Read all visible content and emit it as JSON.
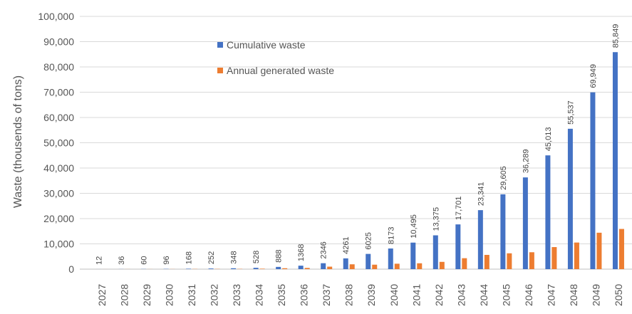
{
  "chart_data": {
    "type": "bar",
    "title": "",
    "xlabel": "",
    "ylabel": "Waste (thousends of tons)",
    "ylim": [
      0,
      100000
    ],
    "yticks": [
      0,
      10000,
      20000,
      30000,
      40000,
      50000,
      60000,
      70000,
      80000,
      90000,
      100000
    ],
    "ytick_labels": [
      "0",
      "10,000",
      "20,000",
      "30,000",
      "40,000",
      "50,000",
      "60,000",
      "70,000",
      "80,000",
      "90,000",
      "100,000"
    ],
    "grid": true,
    "legend_position": "top-center",
    "categories": [
      "2027",
      "2028",
      "2029",
      "2030",
      "2031",
      "2032",
      "2033",
      "2034",
      "2035",
      "2036",
      "2037",
      "2038",
      "2039",
      "2040",
      "2041",
      "2042",
      "2043",
      "2044",
      "2045",
      "2046",
      "2047",
      "2048",
      "2049",
      "2050"
    ],
    "series": [
      {
        "name": "Cumulative waste",
        "color": "#4472C4",
        "values": [
          12,
          36,
          60,
          96,
          168,
          252,
          348,
          528,
          888,
          1368,
          2346,
          4261,
          6025,
          8173,
          10495,
          13375,
          17701,
          23341,
          29605,
          36289,
          45013,
          55537,
          69949,
          85849
        ],
        "data_labels": [
          "12",
          "36",
          "60",
          "96",
          "168",
          "252",
          "348",
          "528",
          "888",
          "1368",
          "2346",
          "4261",
          "6025",
          "8173",
          "10,495",
          "13,375",
          "17,701",
          "23,341",
          "29,605",
          "36,289",
          "45,013",
          "55,537",
          "69,949",
          "85,849"
        ]
      },
      {
        "name": "Annual generated waste",
        "color": "#ED7D31",
        "values": [
          12,
          24,
          24,
          36,
          72,
          84,
          96,
          180,
          360,
          480,
          978,
          1915,
          1764,
          2148,
          2322,
          2880,
          4326,
          5640,
          6264,
          6684,
          8724,
          10524,
          14412,
          15900
        ]
      }
    ]
  }
}
